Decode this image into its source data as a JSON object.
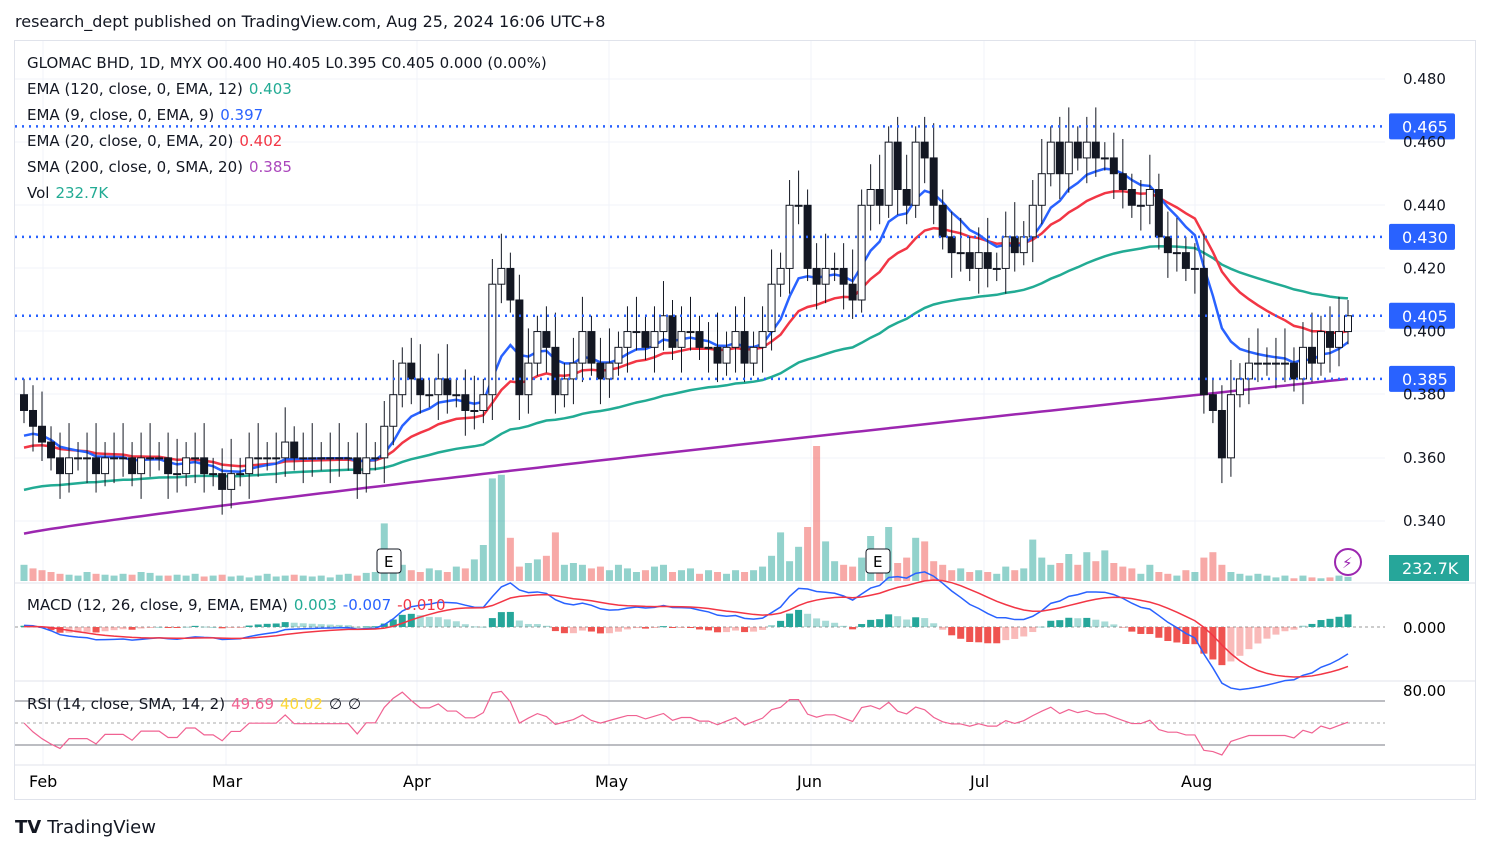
{
  "header": {
    "published": "research_dept published on TradingView.com, Aug 25, 2024 16:06 UTC+8"
  },
  "legend": {
    "symbol": "GLOMAC BHD, 1D, MYX  O0.400  H0.405  L0.395  C0.405  0.000 (0.00%)",
    "ema120_label": "EMA (120, close, 0, EMA, 12)",
    "ema120_value": "0.403",
    "ema9_label": "EMA (9, close, 0, EMA, 9)",
    "ema9_value": "0.397",
    "ema20_label": "EMA (20, close, 0, EMA, 20)",
    "ema20_value": "0.402",
    "sma200_label": "SMA (200, close, 0, SMA, 20)",
    "sma200_value": "0.385",
    "vol_label": "Vol",
    "vol_value": "232.7K",
    "macd_label": "MACD (12, 26, close, 9, EMA, EMA)",
    "macd_hist": "0.003",
    "macd_line": "-0.007",
    "macd_signal": "-0.010",
    "rsi_label": "RSI (14, close, SMA, 14, 2)",
    "rsi_value": "49.69",
    "rsi_ma": "40.02",
    "rsi_extra1": "∅",
    "rsi_extra2": "∅"
  },
  "colors": {
    "up": "#26a69a",
    "down": "#ef5350",
    "ema120": "#22ab94",
    "ema9": "#2962ff",
    "ema20": "#f23645",
    "sma200": "#9c27b0",
    "hline": "#2962ff",
    "rsi": "#f06292"
  },
  "footer": {
    "brand": "TradingView"
  },
  "earnings_marker": "E",
  "chart_data": {
    "type": "candlestick",
    "title": "GLOMAC BHD, 1D, MYX",
    "price_ticks": [
      "0.480",
      "0.460",
      "0.440",
      "0.420",
      "0.400",
      "0.380",
      "0.360",
      "0.340"
    ],
    "price_range": [
      0.335,
      0.485
    ],
    "x_ticks": [
      "Feb",
      "Mar",
      "Apr",
      "May",
      "Jun",
      "Jul",
      "Aug"
    ],
    "horizontal_levels": [
      "0.465",
      "0.430",
      "0.405",
      "0.385"
    ],
    "volume_label": "232.7K",
    "macd_tick": "0.000",
    "rsi_tick": "80.00",
    "sma200_range": [
      0.336,
      0.385
    ],
    "closes": [
      0.375,
      0.37,
      0.365,
      0.36,
      0.355,
      0.36,
      0.36,
      0.36,
      0.355,
      0.36,
      0.36,
      0.36,
      0.355,
      0.36,
      0.36,
      0.36,
      0.355,
      0.355,
      0.36,
      0.36,
      0.355,
      0.355,
      0.35,
      0.355,
      0.355,
      0.36,
      0.36,
      0.36,
      0.36,
      0.365,
      0.36,
      0.36,
      0.36,
      0.36,
      0.36,
      0.36,
      0.36,
      0.355,
      0.36,
      0.36,
      0.37,
      0.38,
      0.39,
      0.385,
      0.38,
      0.38,
      0.385,
      0.38,
      0.38,
      0.375,
      0.375,
      0.38,
      0.415,
      0.42,
      0.41,
      0.38,
      0.39,
      0.4,
      0.395,
      0.38,
      0.385,
      0.39,
      0.4,
      0.39,
      0.385,
      0.39,
      0.395,
      0.4,
      0.4,
      0.395,
      0.4,
      0.405,
      0.395,
      0.4,
      0.4,
      0.395,
      0.395,
      0.39,
      0.395,
      0.4,
      0.39,
      0.395,
      0.4,
      0.415,
      0.42,
      0.44,
      0.44,
      0.42,
      0.415,
      0.42,
      0.42,
      0.415,
      0.41,
      0.44,
      0.445,
      0.44,
      0.46,
      0.445,
      0.44,
      0.46,
      0.455,
      0.44,
      0.43,
      0.425,
      0.425,
      0.42,
      0.425,
      0.42,
      0.42,
      0.43,
      0.425,
      0.43,
      0.44,
      0.45,
      0.46,
      0.45,
      0.46,
      0.455,
      0.46,
      0.455,
      0.455,
      0.45,
      0.445,
      0.44,
      0.44,
      0.445,
      0.43,
      0.425,
      0.425,
      0.42,
      0.42,
      0.38,
      0.375,
      0.36,
      0.38,
      0.385,
      0.39,
      0.39,
      0.39,
      0.39,
      0.39,
      0.385,
      0.395,
      0.39,
      0.4,
      0.395,
      0.4,
      0.405
    ],
    "volume_k": [
      900,
      700,
      600,
      500,
      400,
      350,
      300,
      500,
      400,
      350,
      300,
      400,
      350,
      500,
      450,
      300,
      300,
      350,
      300,
      400,
      250,
      300,
      350,
      250,
      300,
      200,
      300,
      400,
      250,
      300,
      350,
      300,
      250,
      300,
      200,
      350,
      400,
      300,
      450,
      500,
      3200,
      1500,
      900,
      600,
      500,
      700,
      600,
      500,
      800,
      700,
      1200,
      2000,
      5700,
      5900,
      2400,
      800,
      1000,
      1200,
      1400,
      2700,
      900,
      1000,
      900,
      700,
      800,
      600,
      900,
      700,
      500,
      600,
      800,
      900,
      500,
      600,
      700,
      400,
      600,
      500,
      400,
      600,
      500,
      600,
      800,
      1400,
      2700,
      1100,
      1900,
      3000,
      7500,
      2200,
      1100,
      900,
      800,
      1300,
      2500,
      1700,
      3000,
      1000,
      1300,
      2400,
      2200,
      1100,
      900,
      600,
      700,
      500,
      600,
      500,
      400,
      800,
      600,
      700,
      2300,
      1300,
      900,
      1000,
      1500,
      900,
      1600,
      1100,
      1700,
      1000,
      800,
      700,
      400,
      900,
      500,
      400,
      300,
      600,
      500,
      1300,
      1600,
      900,
      500,
      400,
      300,
      400,
      300,
      200,
      300,
      150,
      300,
      200,
      150,
      200,
      300,
      232.7
    ]
  }
}
